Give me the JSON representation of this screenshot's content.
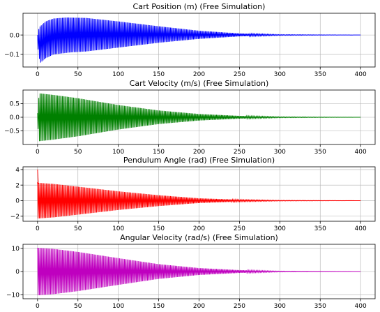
{
  "chart_data": [
    {
      "type": "line",
      "title": "Cart Position (m) (Free Simulation)",
      "xlabel": "",
      "ylabel": "",
      "xlim": [
        -18,
        418
      ],
      "ylim": [
        -0.165,
        0.112
      ],
      "xticks": [
        0,
        50,
        100,
        150,
        200,
        250,
        300,
        350,
        400
      ],
      "xtick_labels": [
        "0",
        "50",
        "100",
        "150",
        "200",
        "250",
        "300",
        "350",
        "400"
      ],
      "yticks": [
        -0.1,
        0.0
      ],
      "ytick_labels": [
        "−0.1",
        "0.0"
      ],
      "grid": true,
      "color": "#0000ff",
      "x_range": [
        0,
        400
      ],
      "envelope": {
        "upper": [
          [
            0,
            0.0
          ],
          [
            2,
            0.04
          ],
          [
            10,
            0.07
          ],
          [
            20,
            0.085
          ],
          [
            35,
            0.09
          ],
          [
            60,
            0.088
          ],
          [
            100,
            0.07
          ],
          [
            150,
            0.045
          ],
          [
            200,
            0.022
          ],
          [
            250,
            0.008
          ],
          [
            300,
            0.002
          ],
          [
            400,
            0.0
          ]
        ],
        "lower": [
          [
            0,
            -0.05
          ],
          [
            3,
            -0.145
          ],
          [
            10,
            -0.12
          ],
          [
            20,
            -0.1
          ],
          [
            40,
            -0.09
          ],
          [
            60,
            -0.085
          ],
          [
            100,
            -0.065
          ],
          [
            150,
            -0.04
          ],
          [
            200,
            -0.02
          ],
          [
            250,
            -0.007
          ],
          [
            300,
            -0.002
          ],
          [
            400,
            0.0
          ]
        ]
      }
    },
    {
      "type": "line",
      "title": "Cart Velocity (m/s) (Free Simulation)",
      "xlabel": "",
      "ylabel": "",
      "xlim": [
        -18,
        418
      ],
      "ylim": [
        -1.0,
        1.0
      ],
      "xticks": [
        0,
        50,
        100,
        150,
        200,
        250,
        300,
        350,
        400
      ],
      "xtick_labels": [
        "0",
        "50",
        "100",
        "150",
        "200",
        "250",
        "300",
        "350",
        "400"
      ],
      "yticks": [
        -0.5,
        0.0,
        0.5
      ],
      "ytick_labels": [
        "−0.5",
        "0.0",
        "0.5"
      ],
      "grid": true,
      "color": "#008000",
      "x_range": [
        0,
        400
      ],
      "envelope": {
        "upper": [
          [
            0,
            0.15
          ],
          [
            2,
            0.88
          ],
          [
            20,
            0.82
          ],
          [
            50,
            0.7
          ],
          [
            100,
            0.45
          ],
          [
            150,
            0.25
          ],
          [
            200,
            0.12
          ],
          [
            250,
            0.05
          ],
          [
            300,
            0.015
          ],
          [
            400,
            0.0
          ]
        ],
        "lower": [
          [
            0,
            -0.15
          ],
          [
            2,
            -0.88
          ],
          [
            20,
            -0.82
          ],
          [
            50,
            -0.7
          ],
          [
            100,
            -0.45
          ],
          [
            150,
            -0.25
          ],
          [
            200,
            -0.12
          ],
          [
            250,
            -0.05
          ],
          [
            300,
            -0.015
          ],
          [
            400,
            0.0
          ]
        ]
      }
    },
    {
      "type": "line",
      "title": "Pendulum Angle (rad) (Free Simulation)",
      "xlabel": "",
      "ylabel": "",
      "xlim": [
        -18,
        418
      ],
      "ylim": [
        -2.65,
        4.35
      ],
      "xticks": [
        0,
        50,
        100,
        150,
        200,
        250,
        300,
        350,
        400
      ],
      "xtick_labels": [
        "0",
        "50",
        "100",
        "150",
        "200",
        "250",
        "300",
        "350",
        "400"
      ],
      "yticks": [
        -2,
        0,
        2,
        4
      ],
      "ytick_labels": [
        "−2",
        "0",
        "2",
        "4"
      ],
      "grid": true,
      "color": "#ff0000",
      "x_range": [
        0,
        400
      ],
      "spike": [
        [
          0,
          4.0
        ],
        [
          1,
          2.2
        ]
      ],
      "envelope": {
        "upper": [
          [
            0,
            2.3
          ],
          [
            20,
            2.15
          ],
          [
            50,
            1.8
          ],
          [
            100,
            1.2
          ],
          [
            150,
            0.7
          ],
          [
            200,
            0.3
          ],
          [
            250,
            0.12
          ],
          [
            300,
            0.04
          ],
          [
            400,
            0.0
          ]
        ],
        "lower": [
          [
            0,
            -2.3
          ],
          [
            20,
            -2.15
          ],
          [
            50,
            -1.8
          ],
          [
            100,
            -1.2
          ],
          [
            150,
            -0.7
          ],
          [
            200,
            -0.3
          ],
          [
            250,
            -0.12
          ],
          [
            300,
            -0.04
          ],
          [
            400,
            0.0
          ]
        ]
      }
    },
    {
      "type": "line",
      "title": "Angular Velocity (rad/s) (Free Simulation)",
      "xlabel": "",
      "ylabel": "",
      "xlim": [
        -18,
        418
      ],
      "ylim": [
        -11.8,
        11.8
      ],
      "xticks": [
        0,
        50,
        100,
        150,
        200,
        250,
        300,
        350,
        400
      ],
      "xtick_labels": [
        "0",
        "50",
        "100",
        "150",
        "200",
        "250",
        "300",
        "350",
        "400"
      ],
      "yticks": [
        -10,
        0,
        10
      ],
      "ytick_labels": [
        "−10",
        "0",
        "10"
      ],
      "grid": true,
      "color": "#bf00bf",
      "x_range": [
        0,
        400
      ],
      "envelope": {
        "upper": [
          [
            0,
            10.3
          ],
          [
            20,
            9.8
          ],
          [
            50,
            8.5
          ],
          [
            100,
            5.8
          ],
          [
            150,
            3.2
          ],
          [
            200,
            1.5
          ],
          [
            250,
            0.6
          ],
          [
            300,
            0.15
          ],
          [
            400,
            0.0
          ]
        ],
        "lower": [
          [
            0,
            -10.3
          ],
          [
            20,
            -9.8
          ],
          [
            50,
            -8.5
          ],
          [
            100,
            -5.8
          ],
          [
            150,
            -3.2
          ],
          [
            200,
            -1.5
          ],
          [
            250,
            -0.6
          ],
          [
            300,
            -0.15
          ],
          [
            400,
            0.0
          ]
        ]
      }
    }
  ]
}
